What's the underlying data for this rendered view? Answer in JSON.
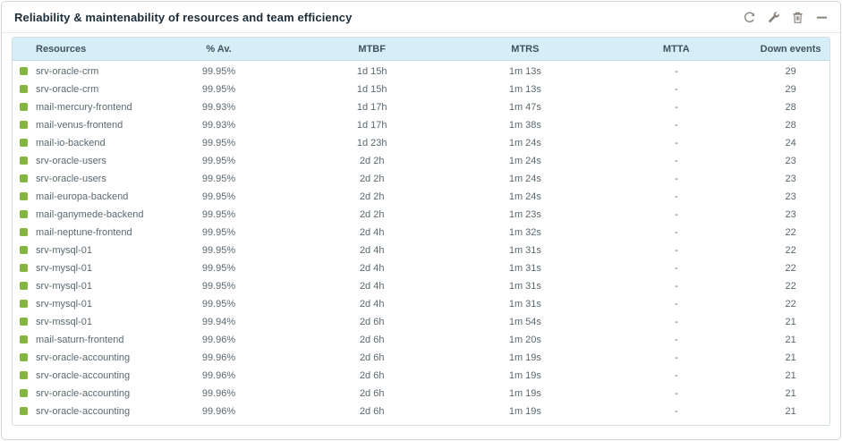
{
  "panel": {
    "title": "Reliability & maintenability of resources and team efficiency",
    "toolbar": [
      {
        "name": "refresh-icon",
        "action": "refresh"
      },
      {
        "name": "wrench-icon",
        "action": "configure"
      },
      {
        "name": "trash-icon",
        "action": "delete"
      },
      {
        "name": "minus-icon",
        "action": "collapse"
      }
    ]
  },
  "table": {
    "columns": [
      "Resources",
      "% Av.",
      "MTBF",
      "MTRS",
      "MTTA",
      "Down events"
    ],
    "status_icon": "green-square-ok",
    "rows": [
      {
        "resource": "srv-oracle-crm",
        "availability": "99.95%",
        "mtbf": "1d 15h",
        "mtrs": "1m 13s",
        "mtta": "-",
        "down_events": "29"
      },
      {
        "resource": "srv-oracle-crm",
        "availability": "99.95%",
        "mtbf": "1d 15h",
        "mtrs": "1m 13s",
        "mtta": "-",
        "down_events": "29"
      },
      {
        "resource": "mail-mercury-frontend",
        "availability": "99.93%",
        "mtbf": "1d 17h",
        "mtrs": "1m 47s",
        "mtta": "-",
        "down_events": "28"
      },
      {
        "resource": "mail-venus-frontend",
        "availability": "99.93%",
        "mtbf": "1d 17h",
        "mtrs": "1m 38s",
        "mtta": "-",
        "down_events": "28"
      },
      {
        "resource": "mail-io-backend",
        "availability": "99.95%",
        "mtbf": "1d 23h",
        "mtrs": "1m 24s",
        "mtta": "-",
        "down_events": "24"
      },
      {
        "resource": "srv-oracle-users",
        "availability": "99.95%",
        "mtbf": "2d 2h",
        "mtrs": "1m 24s",
        "mtta": "-",
        "down_events": "23"
      },
      {
        "resource": "srv-oracle-users",
        "availability": "99.95%",
        "mtbf": "2d 2h",
        "mtrs": "1m 24s",
        "mtta": "-",
        "down_events": "23"
      },
      {
        "resource": "mail-europa-backend",
        "availability": "99.95%",
        "mtbf": "2d 2h",
        "mtrs": "1m 24s",
        "mtta": "-",
        "down_events": "23"
      },
      {
        "resource": "mail-ganymede-backend",
        "availability": "99.95%",
        "mtbf": "2d 2h",
        "mtrs": "1m 23s",
        "mtta": "-",
        "down_events": "23"
      },
      {
        "resource": "mail-neptune-frontend",
        "availability": "99.95%",
        "mtbf": "2d 4h",
        "mtrs": "1m 32s",
        "mtta": "-",
        "down_events": "22"
      },
      {
        "resource": "srv-mysql-01",
        "availability": "99.95%",
        "mtbf": "2d 4h",
        "mtrs": "1m 31s",
        "mtta": "-",
        "down_events": "22"
      },
      {
        "resource": "srv-mysql-01",
        "availability": "99.95%",
        "mtbf": "2d 4h",
        "mtrs": "1m 31s",
        "mtta": "-",
        "down_events": "22"
      },
      {
        "resource": "srv-mysql-01",
        "availability": "99.95%",
        "mtbf": "2d 4h",
        "mtrs": "1m 31s",
        "mtta": "-",
        "down_events": "22"
      },
      {
        "resource": "srv-mysql-01",
        "availability": "99.95%",
        "mtbf": "2d 4h",
        "mtrs": "1m 31s",
        "mtta": "-",
        "down_events": "22"
      },
      {
        "resource": "srv-mssql-01",
        "availability": "99.94%",
        "mtbf": "2d 6h",
        "mtrs": "1m 54s",
        "mtta": "-",
        "down_events": "21"
      },
      {
        "resource": "mail-saturn-frontend",
        "availability": "99.96%",
        "mtbf": "2d 6h",
        "mtrs": "1m 20s",
        "mtta": "-",
        "down_events": "21"
      },
      {
        "resource": "srv-oracle-accounting",
        "availability": "99.96%",
        "mtbf": "2d 6h",
        "mtrs": "1m 19s",
        "mtta": "-",
        "down_events": "21"
      },
      {
        "resource": "srv-oracle-accounting",
        "availability": "99.96%",
        "mtbf": "2d 6h",
        "mtrs": "1m 19s",
        "mtta": "-",
        "down_events": "21"
      },
      {
        "resource": "srv-oracle-accounting",
        "availability": "99.96%",
        "mtbf": "2d 6h",
        "mtrs": "1m 19s",
        "mtta": "-",
        "down_events": "21"
      },
      {
        "resource": "srv-oracle-accounting",
        "availability": "99.96%",
        "mtbf": "2d 6h",
        "mtrs": "1m 19s",
        "mtta": "-",
        "down_events": "21"
      }
    ]
  },
  "colors": {
    "status_ok_green": "#84b53e",
    "header_bg": "#d6eef8",
    "header_text": "#42525c",
    "row_text": "#5a6870",
    "title_text": "#1c2d3a",
    "icon_gray": "#87817a",
    "panel_border": "#d5d5d5",
    "table_border": "#d2dde4"
  }
}
